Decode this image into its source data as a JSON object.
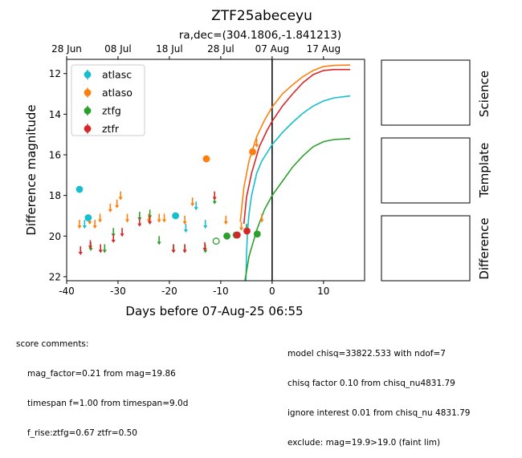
{
  "chart_data": {
    "type": "scatter",
    "title": "ZTF25abeceyu",
    "subtitle": "ra,dec=(304.1806,-1.841213)",
    "xlabel": "Days before 07-Aug-25 06:55",
    "ylabel": "Difference magnitude",
    "xlim": [
      -40,
      18
    ],
    "ylim": [
      22.2,
      11.3
    ],
    "y_inverted": true,
    "x_ticks": [
      -40,
      -30,
      -20,
      -10,
      0,
      10
    ],
    "y_ticks": [
      12,
      14,
      16,
      18,
      20,
      22
    ],
    "top_axis_ticks": [
      {
        "x": -40,
        "label": "28 Jun"
      },
      {
        "x": -30,
        "label": "08 Jul"
      },
      {
        "x": -20,
        "label": "18 Jul"
      },
      {
        "x": -10,
        "label": "28 Jul"
      },
      {
        "x": 0,
        "label": "07 Aug"
      },
      {
        "x": 10,
        "label": "17 Aug"
      }
    ],
    "vline_x": 0,
    "legend_position": "upper-left",
    "series": [
      {
        "name": "atlasc",
        "color": "#17becf",
        "detections": [
          {
            "x": -37.5,
            "y": 17.7
          },
          {
            "x": -35.8,
            "y": 19.1
          },
          {
            "x": -18.8,
            "y": 19.0
          }
        ],
        "upper_limits": [
          {
            "x": -36.5,
            "y": 19.4
          },
          {
            "x": -16.8,
            "y": 19.6
          },
          {
            "x": -14.8,
            "y": 18.5
          },
          {
            "x": -13.0,
            "y": 19.4
          }
        ],
        "model": [
          [
            -5.1,
            22.2
          ],
          [
            -5.0,
            21.0
          ],
          [
            -4.8,
            19.8
          ],
          [
            -4.5,
            18.9
          ],
          [
            -4.0,
            18.0
          ],
          [
            -3.0,
            16.9
          ],
          [
            -2.0,
            16.3
          ],
          [
            0,
            15.5
          ],
          [
            2,
            14.9
          ],
          [
            4,
            14.4
          ],
          [
            6,
            13.95
          ],
          [
            8,
            13.6
          ],
          [
            10,
            13.35
          ],
          [
            12,
            13.2
          ],
          [
            15.2,
            13.1
          ]
        ]
      },
      {
        "name": "atlaso",
        "color": "#ff7f0e",
        "detections": [
          {
            "x": -12.8,
            "y": 16.2
          },
          {
            "x": -3.8,
            "y": 15.85
          }
        ],
        "upper_limits": [
          {
            "x": -37.5,
            "y": 19.4
          },
          {
            "x": -35.5,
            "y": 19.2
          },
          {
            "x": -34.5,
            "y": 19.4
          },
          {
            "x": -33.5,
            "y": 19.1
          },
          {
            "x": -31.5,
            "y": 18.6
          },
          {
            "x": -30.2,
            "y": 18.4
          },
          {
            "x": -29.5,
            "y": 18.0
          },
          {
            "x": -28.2,
            "y": 19.1
          },
          {
            "x": -24.0,
            "y": 19.1
          },
          {
            "x": -22.0,
            "y": 19.1
          },
          {
            "x": -21.0,
            "y": 19.1
          },
          {
            "x": -17.0,
            "y": 19.2
          },
          {
            "x": -15.5,
            "y": 18.3
          },
          {
            "x": -9.0,
            "y": 19.2
          },
          {
            "x": -6.0,
            "y": 19.5
          },
          {
            "x": -3.0,
            "y": 15.4
          },
          {
            "x": -2.0,
            "y": 19.1
          }
        ],
        "model": [
          [
            -6.2,
            19.3
          ],
          [
            -5.5,
            17.6
          ],
          [
            -4.5,
            16.3
          ],
          [
            -3.0,
            15.1
          ],
          [
            -1.5,
            14.3
          ],
          [
            0,
            13.65
          ],
          [
            2,
            13.0
          ],
          [
            4,
            12.55
          ],
          [
            6,
            12.15
          ],
          [
            8,
            11.85
          ],
          [
            10,
            11.65
          ],
          [
            12,
            11.6
          ],
          [
            15.2,
            11.58
          ]
        ]
      },
      {
        "name": "ztfg",
        "color": "#2ca02c",
        "detections": [
          {
            "x": -8.8,
            "y": 20.0
          },
          {
            "x": -7.0,
            "y": 19.95
          },
          {
            "x": -2.9,
            "y": 19.9
          }
        ],
        "hollow": [
          {
            "x": -10.9,
            "y": 20.25
          }
        ],
        "upper_limits": [
          {
            "x": -35.3,
            "y": 20.5
          },
          {
            "x": -32.6,
            "y": 20.6
          },
          {
            "x": -30.9,
            "y": 19.8
          },
          {
            "x": -25.8,
            "y": 19.0
          },
          {
            "x": -23.8,
            "y": 18.9
          },
          {
            "x": -22.0,
            "y": 20.2
          },
          {
            "x": -19.2,
            "y": 20.6
          },
          {
            "x": -17.0,
            "y": 20.6
          },
          {
            "x": -13.0,
            "y": 20.6
          },
          {
            "x": -11.2,
            "y": 18.2
          },
          {
            "x": -5.0,
            "y": 19.6
          }
        ],
        "model": [
          [
            -5.3,
            22.2
          ],
          [
            -4.5,
            21.0
          ],
          [
            -3.0,
            19.7
          ],
          [
            -1.5,
            18.7
          ],
          [
            0,
            18.0
          ],
          [
            2,
            17.3
          ],
          [
            4,
            16.6
          ],
          [
            6,
            16.05
          ],
          [
            8,
            15.6
          ],
          [
            10,
            15.35
          ],
          [
            12,
            15.25
          ],
          [
            15.2,
            15.2
          ]
        ]
      },
      {
        "name": "ztfr",
        "color": "#d62728",
        "detections": [
          {
            "x": -6.8,
            "y": 19.95
          },
          {
            "x": -4.9,
            "y": 19.75
          }
        ],
        "upper_limits": [
          {
            "x": -37.3,
            "y": 20.7
          },
          {
            "x": -35.4,
            "y": 20.4
          },
          {
            "x": -33.4,
            "y": 20.6
          },
          {
            "x": -30.9,
            "y": 20.1
          },
          {
            "x": -29.2,
            "y": 19.8
          },
          {
            "x": -25.8,
            "y": 19.3
          },
          {
            "x": -23.8,
            "y": 19.2
          },
          {
            "x": -19.2,
            "y": 20.6
          },
          {
            "x": -17.0,
            "y": 20.6
          },
          {
            "x": -13.1,
            "y": 20.5
          },
          {
            "x": -11.2,
            "y": 18.0
          }
        ],
        "model": [
          [
            -5.5,
            19.4
          ],
          [
            -5.0,
            18.1
          ],
          [
            -4.0,
            16.9
          ],
          [
            -2.5,
            15.6
          ],
          [
            -1.0,
            14.8
          ],
          [
            0,
            14.35
          ],
          [
            2,
            13.6
          ],
          [
            4,
            13.0
          ],
          [
            6,
            12.45
          ],
          [
            8,
            12.05
          ],
          [
            10,
            11.85
          ],
          [
            12,
            11.8
          ],
          [
            15.2,
            11.8
          ]
        ]
      }
    ]
  },
  "side_panels": [
    {
      "label": "Science"
    },
    {
      "label": "Template"
    },
    {
      "label": "Difference"
    }
  ],
  "score_comments": {
    "heading": "score comments:",
    "lines": [
      "mag_factor=0.21 from mag=19.86",
      "timespan f=1.00 from timespan=9.0d",
      "f_rise:ztfg=0.67 ztfr=0.50"
    ]
  },
  "model_comments": [
    "model chisq=33822.533 with ndof=7",
    "chisq factor 0.10 from chisq_nu4831.79",
    "ignore interest 0.01 from chisq_nu 4831.79",
    "exclude: mag=19.9>19.0 (faint lim)"
  ]
}
